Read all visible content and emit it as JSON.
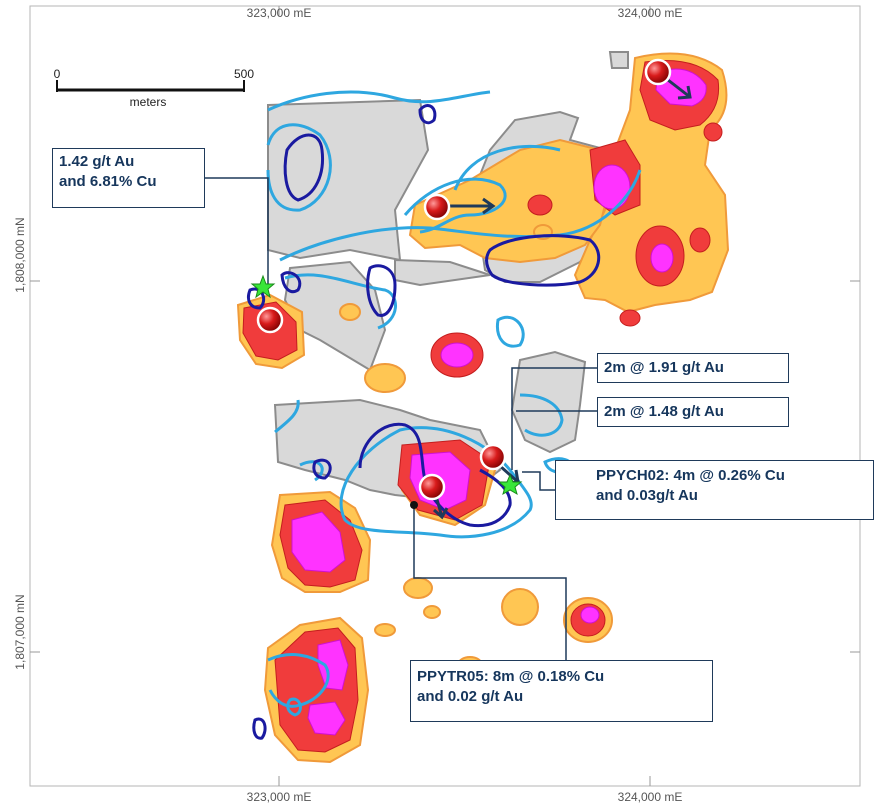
{
  "axes": {
    "easting_top": [
      "323,000 mE",
      "324,000 mE"
    ],
    "easting_bottom": [
      "323,000 mE",
      "324,000 mE"
    ],
    "northing": [
      "1,808,000 mN",
      "1,807,000 mN"
    ]
  },
  "scale_bar": {
    "start": "0",
    "end": "500",
    "unit": "meters"
  },
  "callouts": {
    "north_west": {
      "line1": "1.42 g/t Au",
      "line2": "and 6.81% Cu"
    },
    "trench_a": {
      "line1": "2m @ 1.91 g/t Au"
    },
    "trench_b": {
      "line1": "2m @ 1.48 g/t Au"
    },
    "ppych02": {
      "line1": "PPYCH02: 4m @ 0.26% Cu",
      "line2": "and 0.03g/t Au"
    },
    "ppytr05": {
      "line1": "PPYTR05: 8m @ 0.18% Cu",
      "line2": "and 0.02 g/t Au"
    }
  },
  "colors": {
    "anomaly_magenta": "#ff33ff",
    "anomaly_red": "#f03c3c",
    "anomaly_orange": "#ffc653",
    "outcrop_grey": "#d9d9d9",
    "contour_light_blue": "#2ea7e0",
    "contour_dark_blue": "#1a1aa0",
    "leader_line": "#1f3a5a",
    "star_green": "#39e639"
  }
}
